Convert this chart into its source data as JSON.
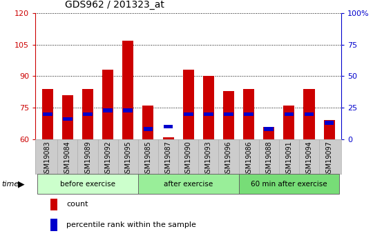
{
  "title": "GDS962 / 201323_at",
  "samples": [
    "GSM19083",
    "GSM19084",
    "GSM19089",
    "GSM19092",
    "GSM19095",
    "GSM19085",
    "GSM19087",
    "GSM19090",
    "GSM19093",
    "GSM19096",
    "GSM19086",
    "GSM19088",
    "GSM19091",
    "GSM19094",
    "GSM19097"
  ],
  "count_values": [
    84,
    81,
    84,
    93,
    107,
    76,
    61,
    93,
    90,
    83,
    84,
    66,
    76,
    84,
    69
  ],
  "percentile_values": [
    20,
    16,
    20,
    23,
    23,
    8,
    10,
    20,
    20,
    20,
    20,
    8,
    20,
    20,
    13
  ],
  "groups": [
    {
      "label": "before exercise",
      "start": 0,
      "end": 5,
      "color": "#ccffcc"
    },
    {
      "label": "after exercise",
      "start": 5,
      "end": 10,
      "color": "#99ee99"
    },
    {
      "label": "60 min after exercise",
      "start": 10,
      "end": 15,
      "color": "#77dd77"
    }
  ],
  "ylim_left": [
    60,
    120
  ],
  "ylim_right": [
    0,
    100
  ],
  "yticks_left": [
    60,
    75,
    90,
    105,
    120
  ],
  "ytick_labels_left": [
    "60",
    "75",
    "90",
    "105",
    "120"
  ],
  "yticks_right": [
    0,
    25,
    50,
    75,
    100
  ],
  "ytick_labels_right": [
    "0",
    "25",
    "50",
    "75",
    "100%"
  ],
  "bar_color": "#cc0000",
  "percentile_color": "#0000cc",
  "bar_width": 0.55,
  "plot_bg_color": "#ffffff",
  "xtick_bg_color": "#cccccc",
  "legend_items": [
    "count",
    "percentile rank within the sample"
  ],
  "legend_colors": [
    "#cc0000",
    "#0000cc"
  ]
}
